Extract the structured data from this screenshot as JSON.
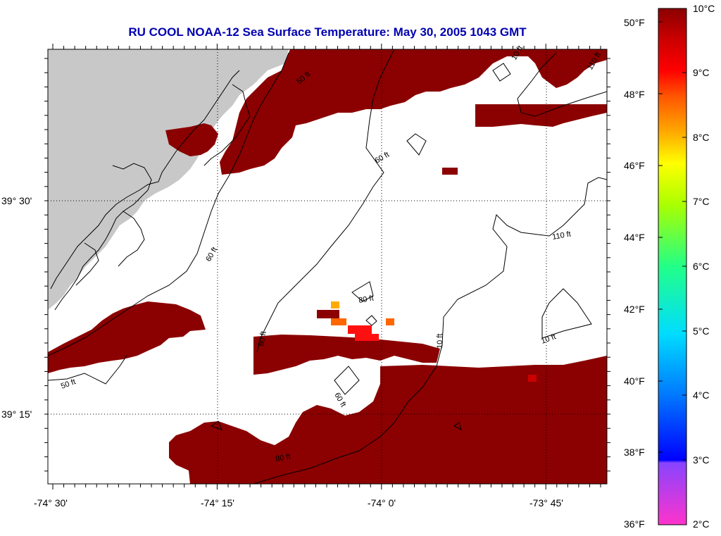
{
  "title": "RU COOL  NOAA-12  Sea Surface Temperature:  May 30, 2005 1043 GMT",
  "map": {
    "lon_labels": [
      "-74° 30'",
      "-74° 15'",
      "-74° 0'",
      "-73° 45'"
    ],
    "lat_labels": [
      "39° 30'",
      "39° 15'"
    ],
    "contour_labels": [
      "50 ft",
      "60 ft",
      "60 ft",
      "80 ft",
      "80 ft",
      "60 ft",
      "10 ft",
      "110 ft",
      "10 ft",
      "50 ft",
      "10 ft",
      "80 ft",
      "110 ft"
    ],
    "colors": {
      "land": "#c8c8c8",
      "sst_warm": "#8b0000",
      "sst_red": "#ff1010",
      "sst_orange": "#ff6600",
      "sst_yellow_orange": "#ffaa00",
      "cloud": "#ffffff"
    }
  },
  "colorbar": {
    "fahrenheit_labels": [
      "50°F",
      "48°F",
      "46°F",
      "44°F",
      "42°F",
      "40°F",
      "38°F",
      "36°F"
    ],
    "celsius_labels": [
      "10°C",
      "9°C",
      "8°C",
      "7°C",
      "6°C",
      "5°C",
      "4°C",
      "3°C",
      "2°C"
    ]
  }
}
